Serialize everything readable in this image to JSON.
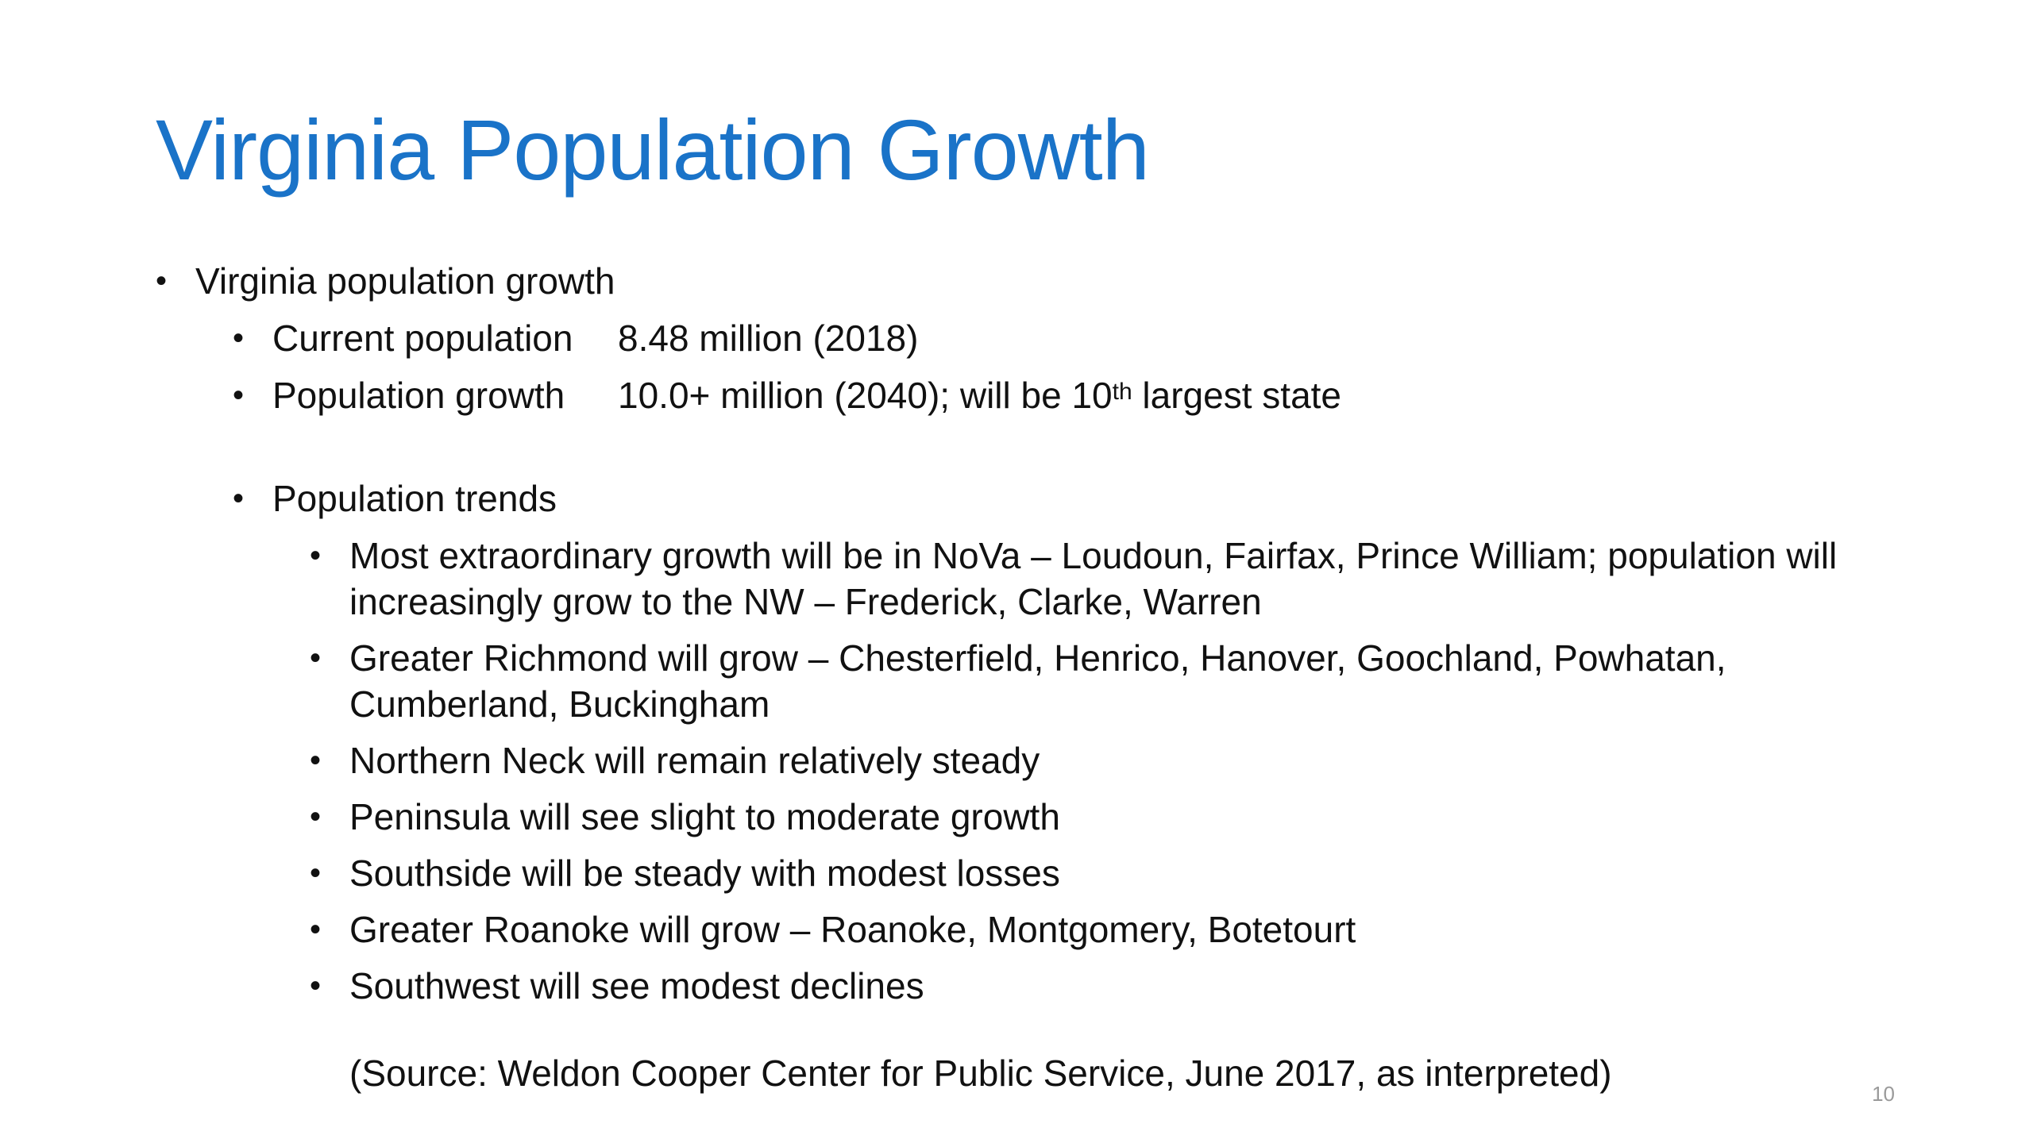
{
  "slide": {
    "title": "Virginia Population Growth",
    "page_number": "10",
    "bullets": {
      "l1_0": "Virginia population growth",
      "current_label": "Current population",
      "current_value": "8.48 million (2018)",
      "growth_label": "Population growth",
      "growth_value_pre": "10.0+ million (2040); will be 10",
      "growth_value_sup": "th",
      "growth_value_post": " largest state",
      "trends": "Population trends",
      "trend_items": [
        "Most extraordinary growth will be in NoVa – Loudoun, Fairfax, Prince William; population will increasingly grow to the NW – Frederick, Clarke, Warren",
        "Greater Richmond will grow – Chesterfield, Henrico, Hanover, Goochland, Powhatan, Cumberland, Buckingham",
        "Northern Neck will remain relatively steady",
        "Peninsula will see slight to moderate growth",
        "Southside will be steady with modest losses",
        "Greater Roanoke will grow – Roanoke, Montgomery, Botetourt",
        "Southwest will see modest declines"
      ]
    },
    "source": "(Source: Weldon Cooper Center for Public Service, June 2017, as interpreted)"
  }
}
